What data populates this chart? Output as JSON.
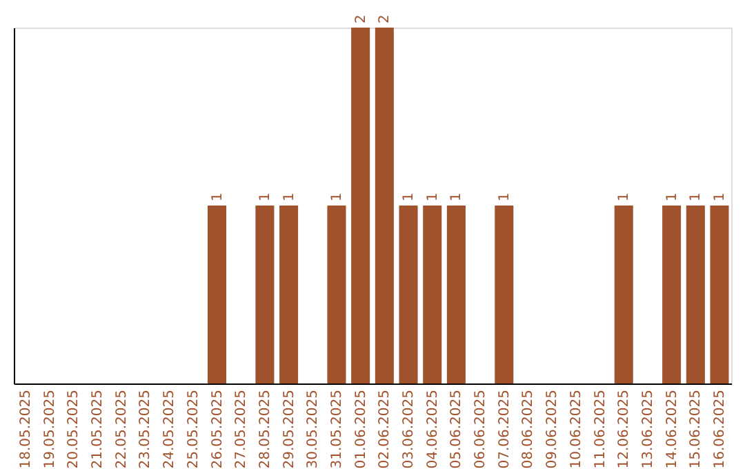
{
  "chart_data": {
    "type": "bar",
    "categories": [
      "18.05.2025",
      "19.05.2025",
      "20.05.2025",
      "21.05.2025",
      "22.05.2025",
      "23.05.2025",
      "24.05.2025",
      "25.05.2025",
      "26.05.2025",
      "27.05.2025",
      "28.05.2025",
      "29.05.2025",
      "30.05.2025",
      "31.05.2025",
      "01.06.2025",
      "02.06.2025",
      "03.06.2025",
      "04.06.2025",
      "05.06.2025",
      "06.06.2025",
      "07.06.2025",
      "08.06.2025",
      "09.06.2025",
      "10.06.2025",
      "11.06.2025",
      "12.06.2025",
      "13.06.2025",
      "14.06.2025",
      "15.06.2025",
      "16.06.2025"
    ],
    "values": [
      0,
      0,
      0,
      0,
      0,
      0,
      0,
      0,
      1,
      0,
      1,
      1,
      0,
      1,
      2,
      2,
      1,
      1,
      1,
      0,
      1,
      0,
      0,
      0,
      0,
      1,
      0,
      1,
      1,
      1
    ],
    "value_labels": [
      null,
      null,
      null,
      null,
      null,
      null,
      null,
      null,
      "1",
      null,
      "1",
      "1",
      null,
      "1",
      "2",
      "2",
      "1",
      "1",
      "1",
      null,
      "1",
      null,
      null,
      null,
      null,
      "1",
      null,
      "1",
      "1",
      "1"
    ],
    "color": "#a0522d",
    "tick_labels": "x"
  }
}
